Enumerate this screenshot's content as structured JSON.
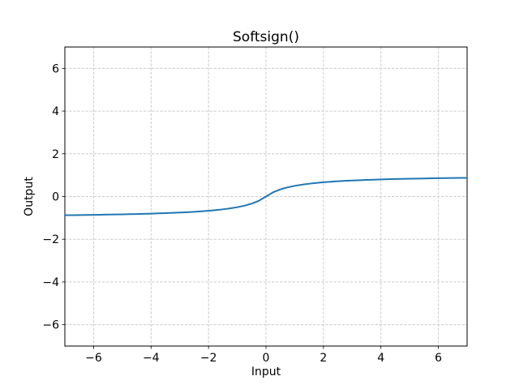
{
  "figure": {
    "background": "#ffffff"
  },
  "chart_data": {
    "type": "line",
    "title": "Softsign()",
    "xlabel": "Input",
    "ylabel": "Output",
    "xlim": [
      -7,
      7
    ],
    "ylim": [
      -7,
      7
    ],
    "xticks": [
      -6,
      -4,
      -2,
      0,
      2,
      4,
      6
    ],
    "yticks": [
      -6,
      -4,
      -2,
      0,
      2,
      4,
      6
    ],
    "xtick_labels": [
      "−6",
      "−4",
      "−2",
      "0",
      "2",
      "4",
      "6"
    ],
    "ytick_labels": [
      "−6",
      "−4",
      "−2",
      "0",
      "2",
      "4",
      "6"
    ],
    "grid": true,
    "grid_style": "dashed",
    "grid_color": "#cccccc",
    "axes_color": "#000000",
    "line_color": "#1f77b4",
    "legend": null,
    "series": [
      {
        "name": "Softsign",
        "x": [
          -7,
          -6.75,
          -6.5,
          -6.25,
          -6,
          -5.75,
          -5.5,
          -5.25,
          -5,
          -4.75,
          -4.5,
          -4.25,
          -4,
          -3.75,
          -3.5,
          -3.25,
          -3,
          -2.75,
          -2.5,
          -2.25,
          -2,
          -1.75,
          -1.5,
          -1.25,
          -1,
          -0.75,
          -0.5,
          -0.25,
          0,
          0.25,
          0.5,
          0.75,
          1,
          1.25,
          1.5,
          1.75,
          2,
          2.25,
          2.5,
          2.75,
          3,
          3.25,
          3.5,
          3.75,
          4,
          4.25,
          4.5,
          4.75,
          5,
          5.25,
          5.5,
          5.75,
          6,
          6.25,
          6.5,
          6.75,
          7
        ],
        "y": [
          -0.875,
          -0.871,
          -0.8667,
          -0.8621,
          -0.8571,
          -0.8519,
          -0.8462,
          -0.84,
          -0.8333,
          -0.8261,
          -0.8182,
          -0.8095,
          -0.8,
          -0.7895,
          -0.7778,
          -0.7647,
          -0.75,
          -0.7333,
          -0.7143,
          -0.6923,
          -0.6667,
          -0.6364,
          -0.6,
          -0.5556,
          -0.5,
          -0.4286,
          -0.3333,
          -0.2,
          0,
          0.2,
          0.3333,
          0.4286,
          0.5,
          0.5556,
          0.6,
          0.6364,
          0.6667,
          0.6923,
          0.7143,
          0.7333,
          0.75,
          0.7647,
          0.7778,
          0.7895,
          0.8,
          0.8095,
          0.8182,
          0.8261,
          0.8333,
          0.84,
          0.8462,
          0.8519,
          0.8571,
          0.8621,
          0.8667,
          0.871,
          0.875
        ]
      }
    ]
  }
}
